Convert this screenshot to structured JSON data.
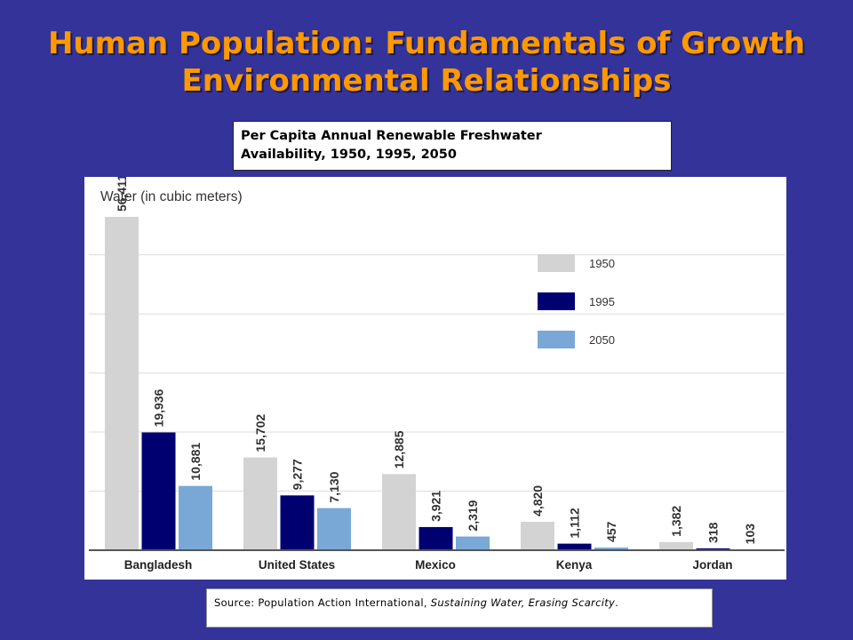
{
  "slide": {
    "title_line1": "Human Population: Fundamentals of Growth",
    "title_line2": "Environmental Relationships"
  },
  "chart_title": {
    "line1": "Per Capita Annual Renewable Freshwater",
    "line2": "Availability, 1950, 1995, 2050"
  },
  "source": {
    "prefix": "Source: Population Action International,",
    "publication": "Sustaining Water, Erasing Scarcity",
    "suffix": "."
  },
  "chart_data": {
    "type": "bar",
    "ylabel": "Water (in cubic meters)",
    "ylim": [
      0,
      56411
    ],
    "grid": true,
    "legend_position": "top-right",
    "categories": [
      "Bangladesh",
      "United States",
      "Mexico",
      "Kenya",
      "Jordan"
    ],
    "series": [
      {
        "name": "1950",
        "color": "#d3d3d3",
        "values": [
          56411,
          15702,
          12885,
          4820,
          1382
        ],
        "labels": [
          "56,411",
          "15,702",
          "12,885",
          "4,820",
          "1,382"
        ]
      },
      {
        "name": "1995",
        "color": "#000070",
        "values": [
          19936,
          9277,
          3921,
          1112,
          318
        ],
        "labels": [
          "19,936",
          "9,277",
          "3,921",
          "1,112",
          "318"
        ]
      },
      {
        "name": "2050",
        "color": "#7aa8d6",
        "values": [
          10881,
          7130,
          2319,
          457,
          103
        ],
        "labels": [
          "10,881",
          "7,130",
          "2,319",
          "457",
          "103"
        ]
      }
    ]
  }
}
